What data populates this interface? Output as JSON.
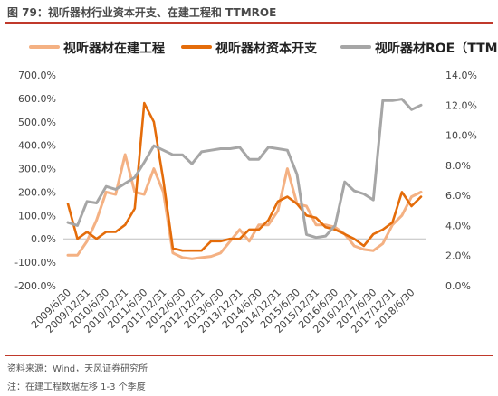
{
  "header": {
    "title": "图 79：视听器材行业资本开支、在建工程和 TTMROE"
  },
  "footer": {
    "source": "资料来源：Wind，天风证券研究所",
    "note": "注：在建工程数据左移 1-3 个季度"
  },
  "chart_data": {
    "type": "line",
    "title": "",
    "xlabel": "",
    "ylabel": "",
    "left_axis": {
      "ylim": [
        -200,
        700
      ],
      "ticks": [
        -200,
        -100,
        0,
        100,
        200,
        300,
        400,
        500,
        600,
        700
      ],
      "tick_labels": [
        "-200.0%",
        "-100.0%",
        "0.0%",
        "100.0%",
        "200.0%",
        "300.0%",
        "400.0%",
        "500.0%",
        "600.0%",
        "700.0%"
      ]
    },
    "right_axis": {
      "ylim": [
        0,
        14
      ],
      "ticks": [
        0,
        2,
        4,
        6,
        8,
        10,
        12,
        14
      ],
      "tick_labels": [
        "0.0%",
        "2.0%",
        "4.0%",
        "6.0%",
        "8.0%",
        "10.0%",
        "12.0%",
        "14.0%"
      ]
    },
    "x": [
      "2009/6/30",
      "2009/9/30",
      "2009/12/31",
      "2010/3/31",
      "2010/6/30",
      "2010/9/30",
      "2010/12/31",
      "2011/3/31",
      "2011/6/30",
      "2011/9/30",
      "2011/12/31",
      "2012/3/31",
      "2012/6/30",
      "2012/9/30",
      "2012/12/31",
      "2013/3/31",
      "2013/6/30",
      "2013/9/30",
      "2013/12/31",
      "2014/3/31",
      "2014/6/30",
      "2014/9/30",
      "2014/12/31",
      "2015/3/31",
      "2015/6/30",
      "2015/9/30",
      "2015/12/31",
      "2016/3/31",
      "2016/6/30",
      "2016/9/30",
      "2016/12/31",
      "2017/3/31",
      "2017/6/30",
      "2017/9/30",
      "2017/12/31",
      "2018/3/31",
      "2018/6/30",
      "2018/9/30"
    ],
    "x_tick_labels": [
      "2009/6/30",
      "2009/12/31",
      "2010/6/30",
      "2010/12/31",
      "2011/6/30",
      "2011/12/31",
      "2012/6/30",
      "2012/12/31",
      "2013/6/30",
      "2013/12/31",
      "2014/6/30",
      "2014/12/31",
      "2015/6/30",
      "2015/12/31",
      "2016/6/30",
      "2016/12/31",
      "2017/6/30",
      "2017/12/31",
      "2018/6/30"
    ],
    "grid": false,
    "legend_position": "top",
    "series": [
      {
        "name": "视听器材在建工程",
        "axis": "left",
        "color": "#f4b183",
        "values": [
          -70,
          -70,
          -10,
          80,
          200,
          190,
          360,
          200,
          190,
          300,
          200,
          -60,
          -80,
          -85,
          -80,
          -75,
          -60,
          -10,
          40,
          -10,
          60,
          60,
          120,
          300,
          150,
          140,
          60,
          60,
          50,
          20,
          -30,
          -45,
          -50,
          -20,
          60,
          100,
          180,
          200
        ]
      },
      {
        "name": "视听器材资本开支",
        "axis": "left",
        "color": "#e46c0a",
        "values": [
          150,
          0,
          30,
          0,
          30,
          30,
          60,
          130,
          580,
          500,
          250,
          -40,
          -50,
          -50,
          -50,
          -10,
          -10,
          0,
          0,
          40,
          40,
          80,
          160,
          180,
          150,
          100,
          90,
          50,
          40,
          20,
          0,
          -30,
          20,
          40,
          70,
          200,
          140,
          180
        ]
      },
      {
        "name": "视听器材ROE（TTM）",
        "axis": "right",
        "color": "#a6a6a6",
        "values": [
          4.2,
          4.0,
          5.6,
          5.5,
          6.6,
          6.4,
          6.8,
          7.2,
          8.2,
          9.3,
          9.0,
          8.7,
          8.7,
          8.1,
          8.9,
          9.0,
          9.1,
          9.1,
          9.2,
          8.4,
          8.4,
          9.2,
          9.1,
          9.0,
          7.4,
          3.4,
          3.2,
          3.3,
          4.0,
          6.9,
          6.3,
          6.1,
          5.7,
          12.3,
          12.3,
          12.4,
          11.7,
          12.0
        ]
      }
    ]
  }
}
